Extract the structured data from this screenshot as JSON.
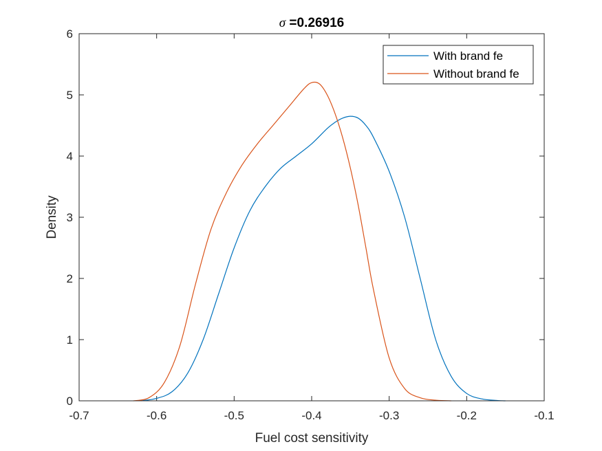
{
  "chart_data": {
    "type": "line",
    "title_symbol": "σ",
    "title_value": " =0.26916",
    "xlabel": "Fuel cost sensitivity",
    "ylabel": "Density",
    "xlim": [
      -0.7,
      -0.1
    ],
    "ylim": [
      0,
      6
    ],
    "xticks": [
      -0.7,
      -0.6,
      -0.5,
      -0.4,
      -0.3,
      -0.2,
      -0.1
    ],
    "xtick_labels": [
      "-0.7",
      "-0.6",
      "-0.5",
      "-0.4",
      "-0.3",
      "-0.2",
      "-0.1"
    ],
    "yticks": [
      0,
      1,
      2,
      3,
      4,
      5,
      6
    ],
    "ytick_labels": [
      "0",
      "1",
      "2",
      "3",
      "4",
      "5",
      "6"
    ],
    "grid": false,
    "legend_position": "top-right",
    "series": [
      {
        "name": "With brand fe",
        "color": "#0072BD",
        "x": [
          -0.62,
          -0.6,
          -0.58,
          -0.56,
          -0.54,
          -0.52,
          -0.5,
          -0.48,
          -0.46,
          -0.44,
          -0.42,
          -0.4,
          -0.38,
          -0.37,
          -0.36,
          -0.35,
          -0.34,
          -0.33,
          -0.32,
          -0.3,
          -0.28,
          -0.26,
          -0.24,
          -0.22,
          -0.2,
          -0.18,
          -0.16,
          -0.15
        ],
        "y": [
          0.0,
          0.04,
          0.15,
          0.45,
          1.0,
          1.75,
          2.5,
          3.1,
          3.5,
          3.8,
          4.0,
          4.2,
          4.45,
          4.55,
          4.62,
          4.65,
          4.62,
          4.5,
          4.3,
          3.75,
          3.0,
          2.0,
          1.0,
          0.4,
          0.12,
          0.03,
          0.005,
          0.0
        ]
      },
      {
        "name": "Without brand fe",
        "color": "#D95319",
        "x": [
          -0.63,
          -0.61,
          -0.59,
          -0.57,
          -0.55,
          -0.53,
          -0.51,
          -0.49,
          -0.47,
          -0.45,
          -0.43,
          -0.41,
          -0.4,
          -0.39,
          -0.38,
          -0.37,
          -0.36,
          -0.35,
          -0.34,
          -0.33,
          -0.32,
          -0.3,
          -0.28,
          -0.26,
          -0.24,
          -0.22
        ],
        "y": [
          0.0,
          0.05,
          0.3,
          0.9,
          1.9,
          2.8,
          3.4,
          3.85,
          4.2,
          4.5,
          4.8,
          5.1,
          5.2,
          5.18,
          5.0,
          4.7,
          4.3,
          3.8,
          3.2,
          2.5,
          1.8,
          0.7,
          0.2,
          0.05,
          0.01,
          0.0
        ]
      }
    ]
  }
}
